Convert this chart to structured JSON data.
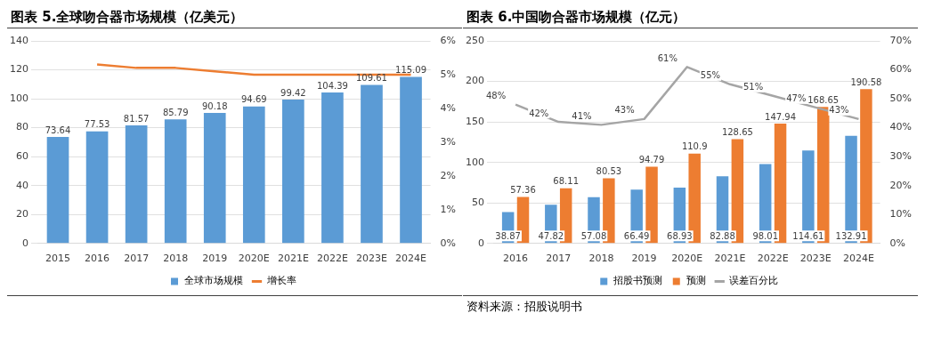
{
  "chart_data": [
    {
      "type": "bar",
      "title": "图表 5.全球吻合器市场规模（亿美元）",
      "categories": [
        "2015",
        "2016",
        "2017",
        "2018",
        "2019",
        "2020E",
        "2021E",
        "2022E",
        "2023E",
        "2024E"
      ],
      "series": [
        {
          "name": "全球市场规模",
          "color": "#5b9bd5",
          "values": [
            73.64,
            77.53,
            81.57,
            85.79,
            90.18,
            94.69,
            99.42,
            104.39,
            109.61,
            115.09
          ],
          "value_labels": [
            "73.64",
            "77.53",
            "81.57",
            "85.79",
            "90.18",
            "94.69",
            "99.42",
            "104.39",
            "109.61",
            "115.09"
          ]
        },
        {
          "name": "增长率",
          "type": "line",
          "axis": "y2",
          "color": "#ed7d31",
          "values": [
            null,
            5.3,
            5.2,
            5.2,
            5.1,
            5.0,
            5.0,
            5.0,
            5.0,
            5.0
          ]
        }
      ],
      "ylim": [
        0,
        140
      ],
      "yticks": [
        0,
        20,
        40,
        60,
        80,
        100,
        120,
        140
      ],
      "y2lim": [
        0,
        6
      ],
      "y2ticks": [
        {
          "value": 0,
          "label": "0%"
        },
        {
          "value": 1,
          "label": "1%"
        },
        {
          "value": 2,
          "label": "2%"
        },
        {
          "value": 3,
          "label": "3%"
        },
        {
          "value": 4,
          "label": "4%"
        },
        {
          "value": 5,
          "label": "5%"
        },
        {
          "value": 6,
          "label": "6%"
        }
      ],
      "grid": "y",
      "legend": "bottom",
      "marker": "none"
    },
    {
      "type": "bar",
      "title": "图表 6.中国吻合器市场规模（亿元）",
      "categories": [
        "2016",
        "2017",
        "2018",
        "2019",
        "2020E",
        "2021E",
        "2022E",
        "2023E",
        "2024E"
      ],
      "series": [
        {
          "name": "招股书预测",
          "color": "#5b9bd5",
          "values": [
            38.87,
            47.82,
            57.08,
            66.49,
            68.93,
            82.88,
            98.01,
            114.61,
            132.91
          ],
          "value_labels": [
            "38.87",
            "47.82",
            "57.08",
            "66.49",
            "68.93",
            "82.88",
            "98.01",
            "114.61",
            "132.91"
          ]
        },
        {
          "name": "预测",
          "color": "#ed7d31",
          "values": [
            57.36,
            68.11,
            80.53,
            94.79,
            110.9,
            128.65,
            147.94,
            168.65,
            190.58
          ],
          "value_labels": [
            "57.36",
            "68.11",
            "80.53",
            "94.79",
            "110.9",
            "128.65",
            "147.94",
            "168.65",
            "190.58"
          ]
        },
        {
          "name": "误差百分比",
          "type": "line",
          "axis": "y2",
          "color": "#a5a5a5",
          "values": [
            48,
            42,
            41,
            43,
            61,
            55,
            51,
            47,
            43
          ],
          "value_labels": [
            "48%",
            "42%",
            "41%",
            "43%",
            "61%",
            "55%",
            "51%",
            "47%",
            "43%"
          ]
        }
      ],
      "ylim": [
        0,
        250
      ],
      "yticks": [
        0,
        50,
        100,
        150,
        200,
        250
      ],
      "y2lim": [
        0,
        70
      ],
      "y2ticks": [
        {
          "value": 0,
          "label": "0%"
        },
        {
          "value": 10,
          "label": "10%"
        },
        {
          "value": 20,
          "label": "20%"
        },
        {
          "value": 30,
          "label": "30%"
        },
        {
          "value": 40,
          "label": "40%"
        },
        {
          "value": 50,
          "label": "50%"
        },
        {
          "value": 60,
          "label": "60%"
        },
        {
          "value": 70,
          "label": "70%"
        }
      ],
      "grid": "y",
      "legend": "bottom",
      "marker": "none",
      "annotations": [
        "资料来源：招股说明书"
      ]
    }
  ]
}
